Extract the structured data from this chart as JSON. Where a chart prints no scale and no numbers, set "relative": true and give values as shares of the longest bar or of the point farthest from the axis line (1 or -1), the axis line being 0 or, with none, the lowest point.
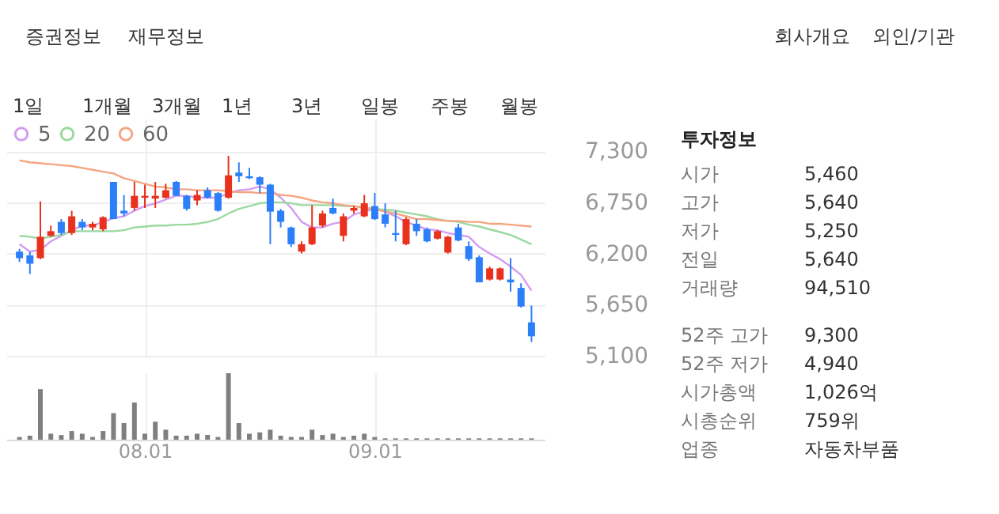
{
  "chart_data": [
    {
      "type": "other",
      "annotations": [
        "증권정보",
        "재무정보",
        "회사개요",
        "외인/기관",
        "1일",
        "1개월",
        "3개월",
        "1년",
        "3년",
        "일봉",
        "주봉",
        "월봉"
      ]
    },
    {
      "type": "candlestick",
      "categories": [
        null,
        null,
        null,
        null,
        null,
        null,
        null,
        null,
        null,
        null,
        null,
        null,
        "08.01",
        null,
        null,
        null,
        null,
        null,
        null,
        null,
        null,
        null,
        null,
        null,
        null,
        null,
        null,
        null,
        null,
        null,
        null,
        null,
        null,
        null,
        "09.01",
        null,
        null,
        null,
        null,
        null,
        null,
        null,
        null,
        null,
        null,
        null,
        null,
        null,
        null,
        null
      ],
      "ohlc": [
        [
          6220,
          6250,
          6110,
          6150
        ],
        [
          6180,
          6220,
          5980,
          6090
        ],
        [
          6150,
          6760,
          6140,
          6380
        ],
        [
          6390,
          6500,
          6380,
          6440
        ],
        [
          6540,
          6570,
          6400,
          6420
        ],
        [
          6420,
          6660,
          6400,
          6600
        ],
        [
          6540,
          6570,
          6450,
          6480
        ],
        [
          6480,
          6540,
          6450,
          6520
        ],
        [
          6460,
          6600,
          6440,
          6590
        ],
        [
          6970,
          6970,
          6570,
          6570
        ],
        [
          6660,
          6830,
          6600,
          6630
        ],
        [
          6690,
          6970,
          6660,
          6820
        ],
        [
          6800,
          6940,
          6690,
          6820
        ],
        [
          6790,
          6970,
          6690,
          6820
        ],
        [
          6800,
          6950,
          6790,
          6880
        ],
        [
          6970,
          6980,
          6820,
          6820
        ],
        [
          6820,
          6830,
          6660,
          6680
        ],
        [
          6770,
          6880,
          6720,
          6830
        ],
        [
          6880,
          6910,
          6790,
          6800
        ],
        [
          6850,
          6860,
          6650,
          6660
        ],
        [
          6800,
          7250,
          6790,
          7040
        ],
        [
          7070,
          7180,
          6970,
          7030
        ],
        [
          7030,
          7120,
          7000,
          7010
        ],
        [
          7020,
          7030,
          6850,
          6940
        ],
        [
          6940,
          6950,
          6300,
          6650
        ],
        [
          6660,
          6680,
          6480,
          6540
        ],
        [
          6480,
          6490,
          6270,
          6300
        ],
        [
          6220,
          6330,
          6200,
          6300
        ],
        [
          6300,
          6720,
          6290,
          6480
        ],
        [
          6500,
          6660,
          6480,
          6630
        ],
        [
          6690,
          6790,
          6620,
          6630
        ],
        [
          6390,
          6630,
          6330,
          6600
        ],
        [
          6660,
          6710,
          6630,
          6690
        ],
        [
          6600,
          6830,
          6590,
          6740
        ],
        [
          6710,
          6850,
          6560,
          6570
        ],
        [
          6620,
          6740,
          6480,
          6520
        ],
        [
          6420,
          6660,
          6330,
          6400
        ],
        [
          6300,
          6590,
          6290,
          6570
        ],
        [
          6520,
          6570,
          6390,
          6440
        ],
        [
          6460,
          6480,
          6320,
          6330
        ],
        [
          6360,
          6450,
          6350,
          6440
        ],
        [
          6210,
          6390,
          6200,
          6380
        ],
        [
          6480,
          6520,
          6330,
          6340
        ],
        [
          6280,
          6330,
          6120,
          6140
        ],
        [
          6160,
          6180,
          5890,
          5890
        ],
        [
          5920,
          6060,
          5910,
          6040
        ],
        [
          5920,
          6050,
          5910,
          6040
        ],
        [
          5920,
          6150,
          5790,
          5890
        ],
        [
          5830,
          5880,
          5620,
          5630
        ],
        [
          5460,
          5640,
          5250,
          5310
        ]
      ],
      "colors": [
        "#2d7ff9",
        "#2d7ff9",
        "#e8321e",
        "#e8321e",
        "#2d7ff9",
        "#e8321e",
        "#2d7ff9",
        "#e8321e",
        "#e8321e",
        "#2d7ff9",
        "#2d7ff9",
        "#e8321e",
        "#e8321e",
        "#e8321e",
        "#e8321e",
        "#2d7ff9",
        "#2d7ff9",
        "#e8321e",
        "#2d7ff9",
        "#2d7ff9",
        "#e8321e",
        "#2d7ff9",
        "#2d7ff9",
        "#2d7ff9",
        "#2d7ff9",
        "#2d7ff9",
        "#2d7ff9",
        "#e8321e",
        "#e8321e",
        "#e8321e",
        "#2d7ff9",
        "#e8321e",
        "#e8321e",
        "#e8321e",
        "#2d7ff9",
        "#2d7ff9",
        "#2d7ff9",
        "#e8321e",
        "#2d7ff9",
        "#2d7ff9",
        "#e8321e",
        "#e8321e",
        "#2d7ff9",
        "#2d7ff9",
        "#2d7ff9",
        "#e8321e",
        "#e8321e",
        "#2d7ff9",
        "#2d7ff9",
        "#2d7ff9"
      ],
      "series": [
        {
          "name": "5",
          "type": "line",
          "color": "#d49cf0",
          "values": [
            6300,
            6220,
            6240,
            6330,
            6390,
            6450,
            6500,
            6500,
            6540,
            6580,
            6600,
            6660,
            6710,
            6740,
            6780,
            6820,
            6820,
            6800,
            6800,
            6800,
            6850,
            6880,
            6890,
            6920,
            6890,
            6800,
            6690,
            6540,
            6480,
            6480,
            6520,
            6540,
            6620,
            6650,
            6680,
            6650,
            6600,
            6540,
            6500,
            6460,
            6450,
            6420,
            6400,
            6380,
            6270,
            6200,
            6140,
            6060,
            5970,
            5800
          ]
        },
        {
          "name": "20",
          "type": "line",
          "color": "#9ad9a0",
          "values": [
            6390,
            6380,
            6360,
            6380,
            6400,
            6440,
            6440,
            6440,
            6440,
            6440,
            6450,
            6480,
            6490,
            6500,
            6500,
            6510,
            6510,
            6520,
            6540,
            6570,
            6630,
            6680,
            6710,
            6740,
            6750,
            6750,
            6740,
            6720,
            6720,
            6720,
            6720,
            6710,
            6710,
            6690,
            6680,
            6670,
            6660,
            6640,
            6620,
            6600,
            6570,
            6550,
            6540,
            6510,
            6490,
            6460,
            6430,
            6400,
            6350,
            6300
          ]
        },
        {
          "name": "60",
          "type": "line",
          "color": "#f5a582",
          "values": [
            7200,
            7180,
            7170,
            7160,
            7150,
            7140,
            7120,
            7100,
            7080,
            7060,
            7010,
            6980,
            6950,
            6920,
            6910,
            6890,
            6890,
            6880,
            6880,
            6880,
            6870,
            6860,
            6860,
            6850,
            6850,
            6830,
            6820,
            6800,
            6770,
            6750,
            6740,
            6720,
            6710,
            6690,
            6680,
            6650,
            6630,
            6600,
            6570,
            6570,
            6560,
            6550,
            6550,
            6540,
            6540,
            6520,
            6520,
            6510,
            6500,
            6490
          ]
        }
      ],
      "ylim": [
        5100,
        7650
      ],
      "yticks": [
        {
          "value": 5100,
          "label": "5,100"
        },
        {
          "value": 5650,
          "label": "5,650"
        },
        {
          "value": 6200,
          "label": "6,200"
        },
        {
          "value": 6750,
          "label": "6,750"
        },
        {
          "value": 7300,
          "label": "7,300"
        }
      ],
      "grid": true,
      "legend": "top left",
      "marker": "none",
      "tick_labels": "y"
    },
    {
      "type": "bar",
      "categories": [
        null,
        null,
        null,
        null,
        null,
        null,
        null,
        null,
        null,
        null,
        null,
        null,
        "08.01",
        null,
        null,
        null,
        null,
        null,
        null,
        null,
        null,
        null,
        null,
        null,
        null,
        null,
        null,
        null,
        null,
        null,
        null,
        null,
        null,
        null,
        "09.01",
        null,
        null,
        null,
        null,
        null,
        null,
        null,
        null,
        null,
        null,
        null,
        null,
        null,
        null,
        null
      ],
      "values": [
        0.04,
        0.06,
        0.76,
        0.09,
        0.07,
        0.13,
        0.09,
        0.04,
        0.13,
        0.4,
        0.25,
        0.56,
        0.09,
        0.27,
        0.15,
        0.06,
        0.06,
        0.09,
        0.07,
        0.04,
        1,
        0.25,
        0.09,
        0.11,
        0.15,
        0.06,
        0.04,
        0.04,
        0.15,
        0.07,
        0.09,
        0.04,
        0.06,
        0.09,
        0.04,
        0.02,
        0.02,
        0.02,
        0.02,
        0.02,
        0.02,
        0.02,
        0.02,
        0.02,
        0.02,
        0.02,
        0.02,
        0.02,
        0.02,
        0.02
      ],
      "color": "#7f7f7f",
      "relative": true,
      "grid": "x",
      "tick_labels": "x"
    },
    {
      "type": "other",
      "title": "투자정보",
      "annotations": [
        "시가",
        "5,460",
        "고가",
        "5,640",
        "저가",
        "5,250",
        "전일",
        "5,640",
        "거래량",
        "94,510",
        "52주 고가",
        "9,300",
        "52주 저가",
        "4,940",
        "시가총액",
        "1,026억",
        "시총순위",
        "759위",
        "업종",
        "자동차부품"
      ]
    }
  ]
}
